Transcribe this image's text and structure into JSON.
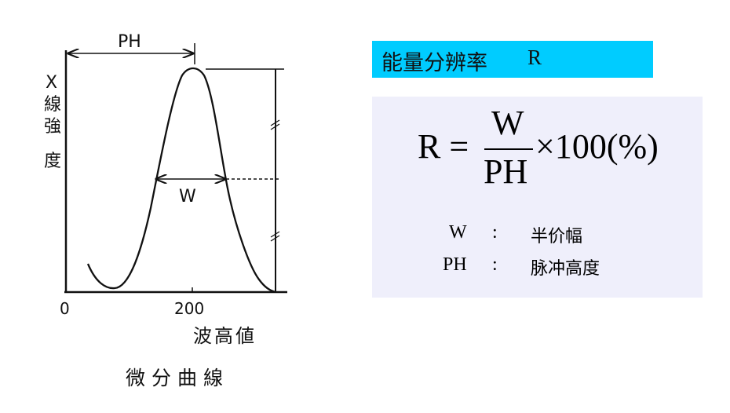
{
  "diagram": {
    "ph_label": "PH",
    "w_label": "W",
    "y_axis_label": [
      "X",
      "線",
      "強",
      "度"
    ],
    "x_tick_0": "0",
    "x_tick_200": "200",
    "x_axis_label": "波高値",
    "caption": "微分曲線"
  },
  "header": {
    "title": "能量分辨率",
    "symbol": "R",
    "color": "#00ccff"
  },
  "formula": {
    "lhs": "R =",
    "numerator": "W",
    "denominator": "PH",
    "multiplier": "×100(%)",
    "panel_color": "#efeffb"
  },
  "legend": [
    {
      "symbol": "W",
      "sep": ":",
      "meaning": "半价幅"
    },
    {
      "symbol": "PH",
      "sep": ":",
      "meaning": "脉冲高度"
    }
  ]
}
